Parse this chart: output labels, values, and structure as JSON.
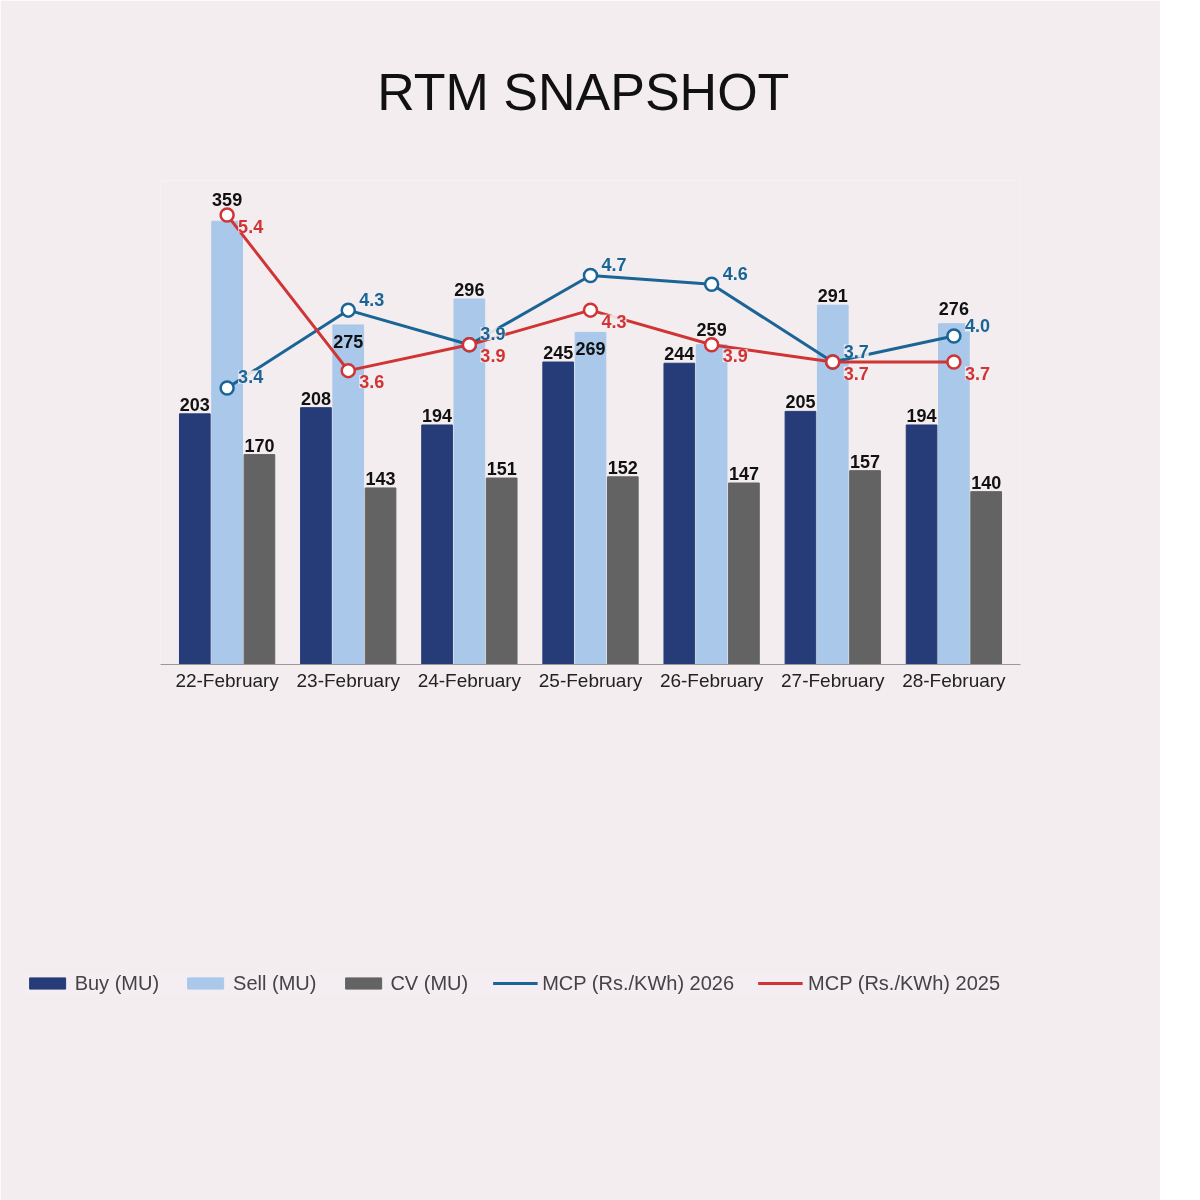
{
  "chart_data": {
    "type": "bar",
    "title": "RTM  SNAPSHOT",
    "categories": [
      "22-February",
      "23-February",
      "24-February",
      "25-February",
      "26-February",
      "27-February",
      "28-February"
    ],
    "series": [
      {
        "name": "Buy (MU)",
        "color": "#253c78",
        "values": [
          203,
          208,
          194,
          245,
          244,
          205,
          194
        ]
      },
      {
        "name": "Sell (MU)",
        "color": "#a9c8ea",
        "values": [
          359,
          275,
          296,
          269,
          259,
          291,
          276
        ]
      },
      {
        "name": "CV (MU)",
        "color": "#636363",
        "values": [
          170,
          143,
          151,
          152,
          147,
          157,
          140
        ]
      },
      {
        "name": "MCP (Rs./KWh) 2026",
        "type": "line",
        "axis": "y2",
        "color": "#1a6496",
        "values": [
          3.4,
          4.3,
          3.9,
          4.7,
          4.6,
          3.7,
          4.0
        ],
        "value_labels": [
          "3.4",
          "4.3",
          "3.9",
          "4.7",
          "4.6",
          "3.7",
          "4.0"
        ]
      },
      {
        "name": "MCP (Rs./KWh) 2025",
        "type": "line",
        "axis": "y2",
        "color": "#d03434",
        "values": [
          5.4,
          3.6,
          3.9,
          4.3,
          3.9,
          3.7,
          3.7
        ],
        "value_labels": [
          "5.4",
          "3.6",
          "3.9",
          "4.3",
          "3.9",
          "3.7",
          "3.7"
        ]
      }
    ],
    "ylim": [
      0,
      392
    ],
    "y2lim": [
      0.2,
      5.8
    ],
    "tick_labels": "x",
    "data_labels": true,
    "marker": "circle",
    "line_style": "solid",
    "grid": false,
    "legend": "bottom"
  }
}
